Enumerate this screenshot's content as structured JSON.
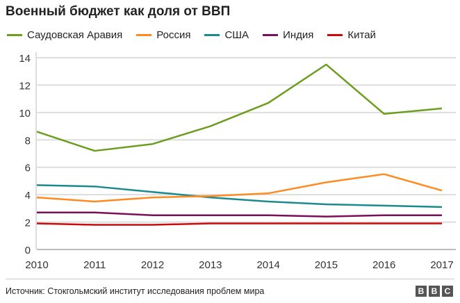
{
  "chart_data": {
    "type": "line",
    "title": "Военный бюджет как доля от ВВП",
    "xlabel": "",
    "ylabel": "",
    "x": [
      2010,
      2011,
      2012,
      2013,
      2014,
      2015,
      2016,
      2017
    ],
    "ylim": [
      0,
      14
    ],
    "yticks": [
      0,
      2,
      4,
      6,
      8,
      10,
      12,
      14
    ],
    "grid": true,
    "legend": "top",
    "series": [
      {
        "name": "Саудовская Аравия",
        "color": "#6b9e1f",
        "values": [
          8.6,
          7.2,
          7.7,
          9.0,
          10.7,
          13.5,
          9.9,
          10.3
        ]
      },
      {
        "name": "Россия",
        "color": "#ff8a1f",
        "values": [
          3.8,
          3.5,
          3.8,
          3.9,
          4.1,
          4.9,
          5.5,
          4.3
        ]
      },
      {
        "name": "США",
        "color": "#1b8a8c",
        "values": [
          4.7,
          4.6,
          4.2,
          3.8,
          3.5,
          3.3,
          3.2,
          3.1
        ]
      },
      {
        "name": "Индия",
        "color": "#7b0f5a",
        "values": [
          2.7,
          2.7,
          2.5,
          2.5,
          2.5,
          2.4,
          2.5,
          2.5
        ]
      },
      {
        "name": "Китай",
        "color": "#cc0a0a",
        "values": [
          1.9,
          1.8,
          1.8,
          1.9,
          1.9,
          1.9,
          1.9,
          1.9
        ]
      }
    ]
  },
  "source": "Источник: Стокгольмский институт исследования проблем мира",
  "logo": "BBC"
}
